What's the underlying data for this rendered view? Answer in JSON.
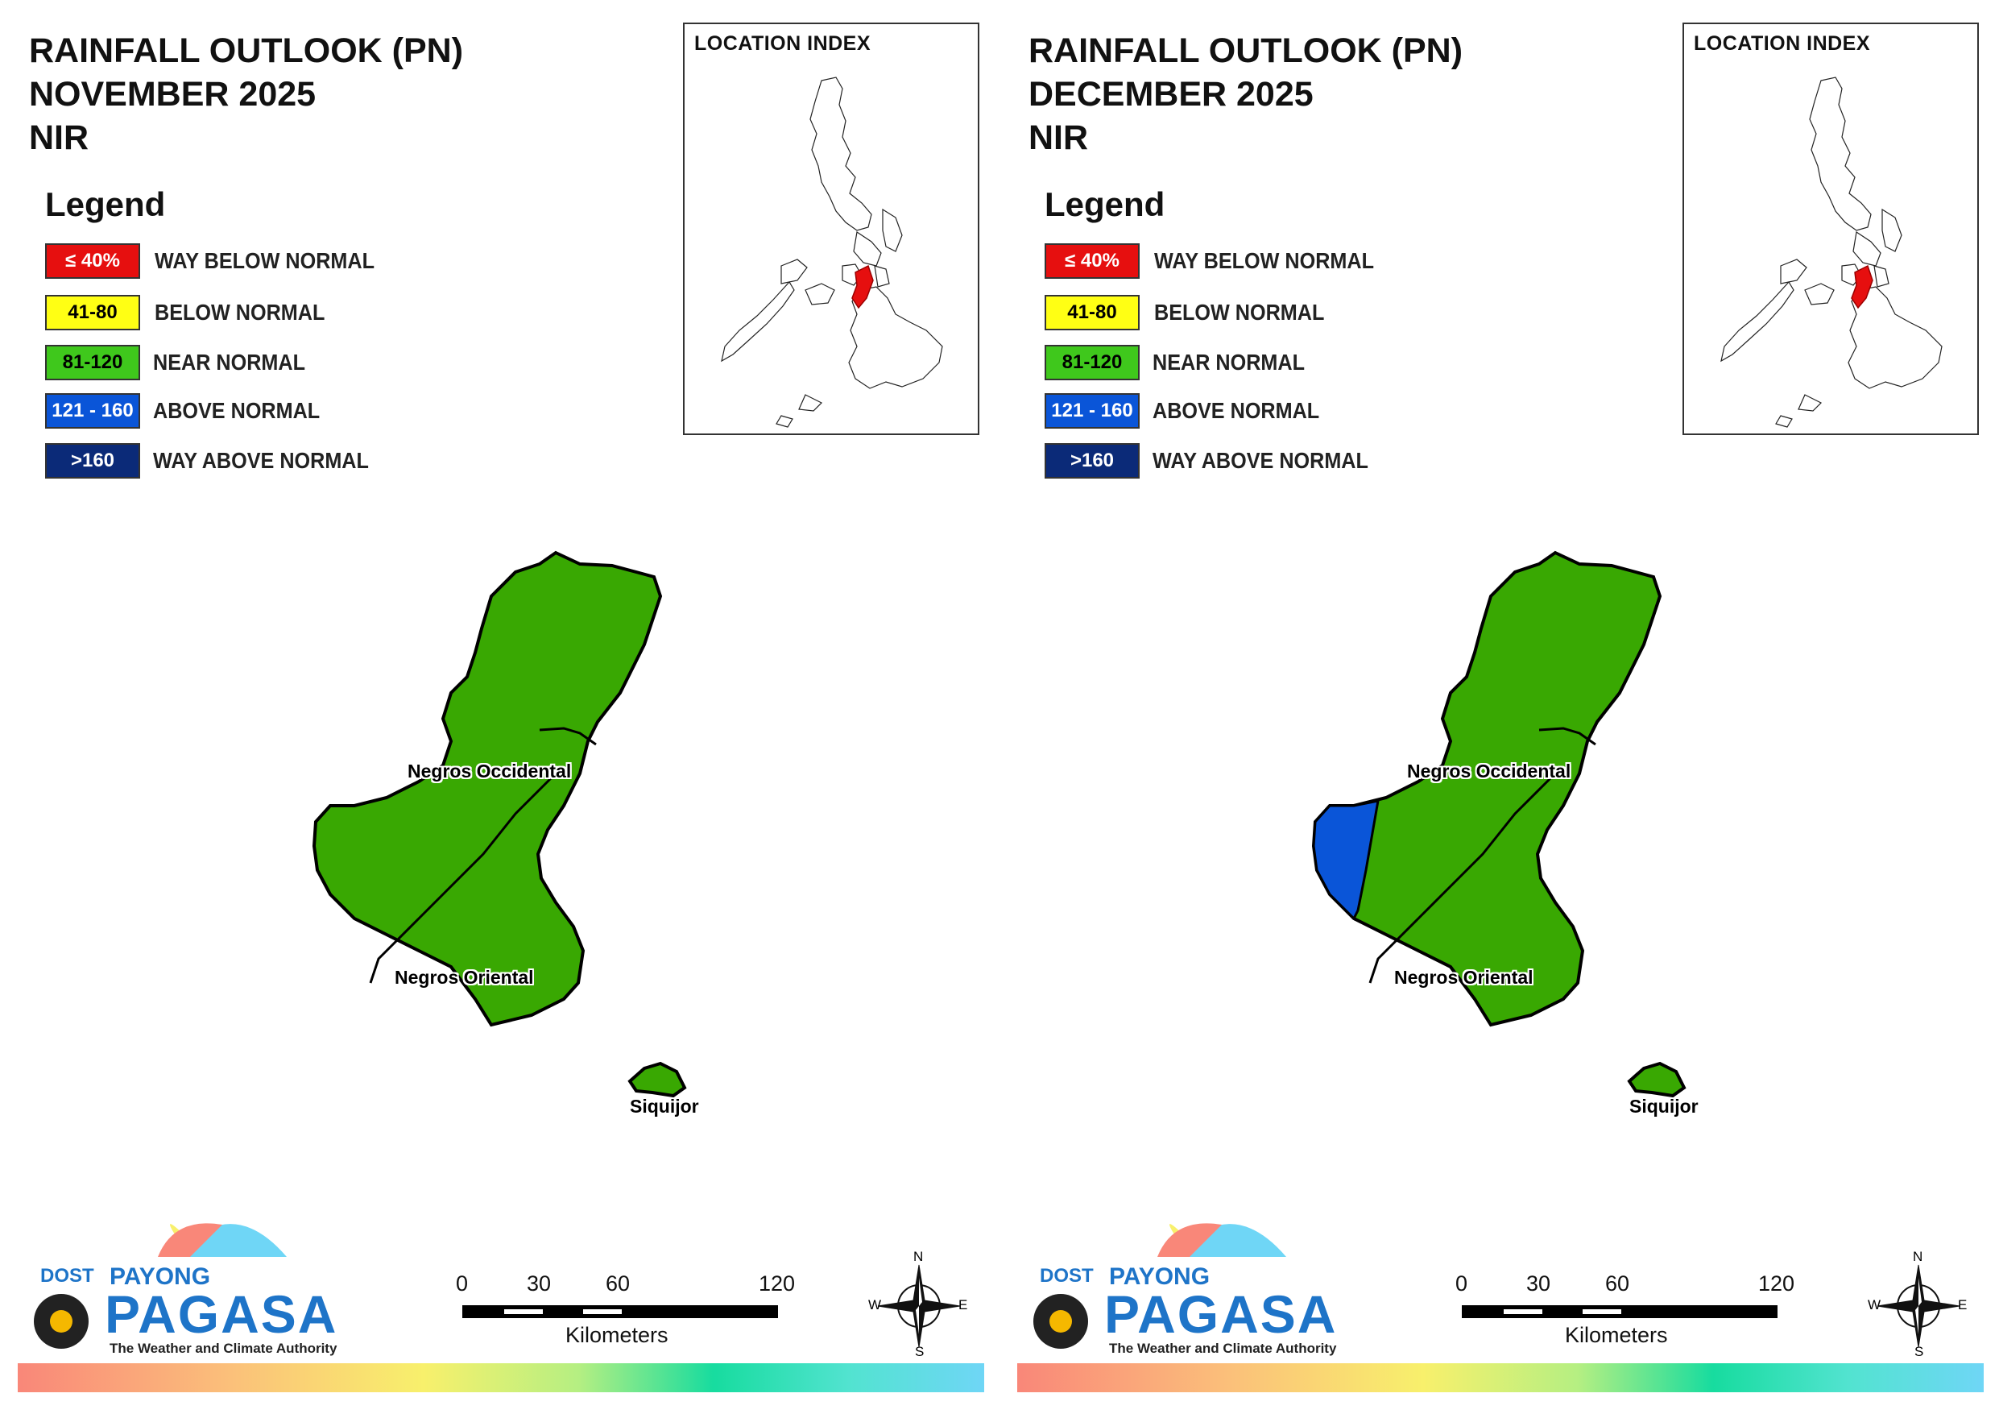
{
  "panels": [
    {
      "title_line1": "RAINFALL OUTLOOK (PN)",
      "title_line2": "NOVEMBER 2025",
      "title_line3": "NIR",
      "negros_occidental_west_category": "near_normal"
    },
    {
      "title_line1": "RAINFALL OUTLOOK (PN)",
      "title_line2": "DECEMBER 2025",
      "title_line3": "NIR",
      "negros_occidental_west_category": "above_normal"
    }
  ],
  "legend": {
    "title": "Legend",
    "items": [
      {
        "key": "way_below_normal",
        "range": "≤ 40%",
        "label": "WAY BELOW NORMAL",
        "color": "#e60f0f",
        "text_color": "#ffffff"
      },
      {
        "key": "below_normal",
        "range": "41-80",
        "label": "BELOW NORMAL",
        "color": "#ffff14",
        "text_color": "#000000"
      },
      {
        "key": "near_normal",
        "range": "81-120",
        "label": "NEAR NORMAL",
        "color": "#3fc81c",
        "text_color": "#000000"
      },
      {
        "key": "above_normal",
        "range": "121 - 160",
        "label": "ABOVE NORMAL",
        "color": "#0a55d8",
        "text_color": "#ffffff"
      },
      {
        "key": "way_above_normal",
        "range": ">160",
        "label": "WAY ABOVE NORMAL",
        "color": "#0b2a78",
        "text_color": "#ffffff"
      }
    ]
  },
  "location_index": {
    "title": "LOCATION INDEX",
    "highlight_color": "#e60f0f"
  },
  "map": {
    "region_fill": "#39a802",
    "provinces": [
      "Negros Occidental",
      "Negros Oriental",
      "Siquijor"
    ]
  },
  "scale": {
    "ticks": [
      "0",
      "30",
      "60",
      "120"
    ],
    "unit": "Kilometers"
  },
  "compass": {
    "n": "N",
    "s": "S",
    "e": "E",
    "w": "W"
  },
  "logo": {
    "dost": "DOST",
    "payong": "PAYONG",
    "pagasa": "PAGASA",
    "tagline": "The Weather and Climate Authority"
  }
}
